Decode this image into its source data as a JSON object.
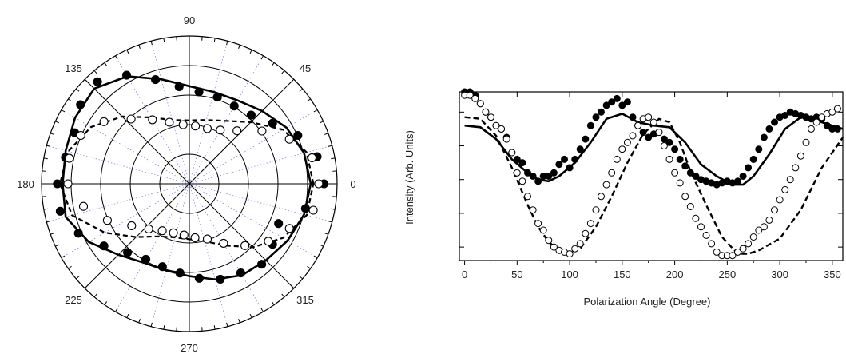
{
  "chart_data": [
    {
      "type": "polar-scatter",
      "angle_labels": [
        "90",
        "45",
        "0",
        "315",
        "270",
        "225",
        "180",
        "135"
      ],
      "angle_label_degrees": [
        90,
        45,
        0,
        315,
        270,
        225,
        180,
        135
      ],
      "rlim": [
        0,
        1.12
      ],
      "grid": true,
      "series": [
        {
          "marker": "filled-circle",
          "points": [
            [
              0,
              1.02
            ],
            [
              12,
              0.99
            ],
            [
              24,
              0.9
            ],
            [
              36,
              0.78
            ],
            [
              48,
              0.7
            ],
            [
              60,
              0.68
            ],
            [
              72,
              0.69
            ],
            [
              84,
              0.7
            ],
            [
              96,
              0.74
            ],
            [
              108,
              0.83
            ],
            [
              120,
              0.95
            ],
            [
              132,
              1.04
            ],
            [
              144,
              1.02
            ],
            [
              156,
              0.95
            ],
            [
              168,
              0.96
            ],
            [
              180,
              1.0
            ],
            [
              192,
              1.0
            ],
            [
              204,
              0.92
            ],
            [
              216,
              0.8
            ],
            [
              228,
              0.7
            ],
            [
              240,
              0.66
            ],
            [
              252,
              0.66
            ],
            [
              264,
              0.68
            ],
            [
              276,
              0.72
            ],
            [
              288,
              0.76
            ],
            [
              300,
              0.78
            ],
            [
              312,
              0.82
            ],
            [
              324,
              0.78
            ],
            [
              336,
              0.74
            ],
            [
              348,
              0.9
            ]
          ]
        },
        {
          "marker": "open-circle",
          "points": [
            [
              0,
              0.98
            ],
            [
              12,
              0.95
            ],
            [
              24,
              0.83
            ],
            [
              36,
              0.68
            ],
            [
              48,
              0.54
            ],
            [
              60,
              0.47
            ],
            [
              72,
              0.44
            ],
            [
              84,
              0.44
            ],
            [
              96,
              0.45
            ],
            [
              108,
              0.49
            ],
            [
              120,
              0.56
            ],
            [
              132,
              0.66
            ],
            [
              144,
              0.8
            ],
            [
              156,
              0.9
            ],
            [
              168,
              0.93
            ],
            [
              180,
              0.92
            ],
            [
              192,
              0.82
            ],
            [
              204,
              0.68
            ],
            [
              216,
              0.54
            ],
            [
              228,
              0.46
            ],
            [
              240,
              0.41
            ],
            [
              252,
              0.39
            ],
            [
              264,
              0.39
            ],
            [
              276,
              0.41
            ],
            [
              288,
              0.44
            ],
            [
              300,
              0.52
            ],
            [
              312,
              0.63
            ],
            [
              324,
              0.74
            ],
            [
              336,
              0.83
            ],
            [
              348,
              0.96
            ]
          ]
        },
        {
          "marker": "solid-line",
          "points": [
            [
              0,
              0.92
            ],
            [
              15,
              0.9
            ],
            [
              30,
              0.85
            ],
            [
              45,
              0.78
            ],
            [
              60,
              0.73
            ],
            [
              75,
              0.72
            ],
            [
              90,
              0.74
            ],
            [
              105,
              0.82
            ],
            [
              120,
              0.94
            ],
            [
              135,
              1.02
            ],
            [
              150,
              1.0
            ],
            [
              165,
              0.97
            ],
            [
              180,
              0.96
            ],
            [
              195,
              0.97
            ],
            [
              210,
              0.88
            ],
            [
              225,
              0.76
            ],
            [
              240,
              0.69
            ],
            [
              255,
              0.68
            ],
            [
              270,
              0.7
            ],
            [
              285,
              0.75
            ],
            [
              300,
              0.8
            ],
            [
              315,
              0.82
            ],
            [
              330,
              0.86
            ],
            [
              345,
              0.9
            ],
            [
              360,
              0.92
            ]
          ]
        },
        {
          "marker": "dashed-line",
          "points": [
            [
              0,
              0.94
            ],
            [
              15,
              0.92
            ],
            [
              30,
              0.82
            ],
            [
              45,
              0.66
            ],
            [
              60,
              0.55
            ],
            [
              75,
              0.5
            ],
            [
              90,
              0.48
            ],
            [
              105,
              0.5
            ],
            [
              120,
              0.58
            ],
            [
              135,
              0.72
            ],
            [
              150,
              0.86
            ],
            [
              165,
              0.95
            ],
            [
              180,
              0.98
            ],
            [
              195,
              0.92
            ],
            [
              210,
              0.74
            ],
            [
              225,
              0.57
            ],
            [
              240,
              0.46
            ],
            [
              255,
              0.42
            ],
            [
              270,
              0.42
            ],
            [
              285,
              0.45
            ],
            [
              300,
              0.54
            ],
            [
              315,
              0.68
            ],
            [
              330,
              0.82
            ],
            [
              345,
              0.92
            ],
            [
              360,
              0.94
            ]
          ]
        }
      ]
    },
    {
      "type": "scatter",
      "xlabel": "Polarization Angle (Degree)",
      "ylabel": "Intensity (Arb. Units)",
      "xlim": [
        -5,
        360
      ],
      "ylim": [
        0,
        1
      ],
      "xticks": [
        "0",
        "50",
        "100",
        "150",
        "200",
        "250",
        "300",
        "350"
      ],
      "xtick_values": [
        0,
        50,
        100,
        150,
        200,
        250,
        300,
        350
      ],
      "ytick_values": [
        0.08,
        0.28,
        0.48,
        0.68,
        0.88
      ],
      "series": [
        {
          "marker": "filled-circle",
          "x": [
            0,
            5,
            10,
            15,
            20,
            25,
            30,
            35,
            40,
            45,
            50,
            55,
            60,
            65,
            70,
            75,
            80,
            85,
            90,
            95,
            100,
            105,
            110,
            115,
            120,
            125,
            130,
            135,
            140,
            145,
            150,
            155,
            160,
            165,
            170,
            175,
            180,
            185,
            190,
            195,
            200,
            205,
            210,
            215,
            220,
            225,
            230,
            235,
            240,
            245,
            250,
            255,
            260,
            265,
            270,
            275,
            280,
            285,
            290,
            295,
            300,
            305,
            310,
            315,
            320,
            325,
            330,
            335,
            340,
            345,
            350,
            355
          ],
          "y": [
            1.0,
            1.0,
            0.98,
            0.93,
            0.88,
            0.85,
            0.8,
            0.78,
            0.73,
            0.64,
            0.6,
            0.58,
            0.52,
            0.5,
            0.47,
            0.5,
            0.5,
            0.52,
            0.57,
            0.6,
            0.55,
            0.6,
            0.66,
            0.72,
            0.8,
            0.85,
            0.88,
            0.92,
            0.94,
            0.96,
            0.92,
            0.94,
            0.85,
            0.8,
            0.76,
            0.73,
            0.75,
            0.76,
            0.72,
            0.7,
            0.66,
            0.6,
            0.56,
            0.52,
            0.5,
            0.48,
            0.47,
            0.46,
            0.45,
            0.46,
            0.47,
            0.46,
            0.47,
            0.5,
            0.55,
            0.6,
            0.66,
            0.73,
            0.78,
            0.82,
            0.85,
            0.86,
            0.88,
            0.87,
            0.86,
            0.85,
            0.84,
            0.85,
            0.84,
            0.8,
            0.78,
            0.78
          ]
        },
        {
          "marker": "open-circle",
          "x": [
            0,
            5,
            10,
            15,
            20,
            25,
            30,
            35,
            40,
            45,
            50,
            55,
            60,
            65,
            70,
            75,
            80,
            85,
            90,
            95,
            100,
            105,
            110,
            115,
            120,
            125,
            130,
            135,
            140,
            145,
            150,
            155,
            160,
            165,
            170,
            175,
            180,
            185,
            190,
            195,
            200,
            205,
            210,
            215,
            220,
            225,
            230,
            235,
            240,
            245,
            250,
            255,
            260,
            265,
            270,
            275,
            280,
            285,
            290,
            295,
            300,
            305,
            310,
            315,
            320,
            325,
            330,
            335,
            340,
            345,
            350,
            355
          ],
          "y": [
            0.98,
            0.98,
            0.96,
            0.93,
            0.88,
            0.85,
            0.8,
            0.78,
            0.72,
            0.64,
            0.52,
            0.47,
            0.38,
            0.3,
            0.22,
            0.18,
            0.12,
            0.08,
            0.06,
            0.05,
            0.04,
            0.07,
            0.1,
            0.16,
            0.22,
            0.3,
            0.38,
            0.45,
            0.52,
            0.6,
            0.66,
            0.7,
            0.74,
            0.8,
            0.84,
            0.85,
            0.82,
            0.76,
            0.68,
            0.6,
            0.52,
            0.46,
            0.38,
            0.32,
            0.25,
            0.2,
            0.15,
            0.1,
            0.05,
            0.03,
            0.03,
            0.03,
            0.05,
            0.07,
            0.1,
            0.14,
            0.18,
            0.2,
            0.24,
            0.3,
            0.36,
            0.42,
            0.48,
            0.55,
            0.62,
            0.7,
            0.78,
            0.82,
            0.85,
            0.87,
            0.88,
            0.9
          ]
        },
        {
          "marker": "solid-line",
          "x": [
            0,
            15,
            30,
            45,
            60,
            70,
            80,
            90,
            105,
            120,
            135,
            150,
            165,
            180,
            195,
            210,
            225,
            240,
            255,
            265,
            275,
            290,
            305,
            320,
            335,
            350,
            360
          ],
          "y": [
            0.8,
            0.79,
            0.72,
            0.6,
            0.52,
            0.48,
            0.47,
            0.5,
            0.58,
            0.7,
            0.84,
            0.87,
            0.82,
            0.8,
            0.79,
            0.7,
            0.57,
            0.5,
            0.45,
            0.45,
            0.5,
            0.63,
            0.78,
            0.85,
            0.83,
            0.8,
            0.78
          ]
        },
        {
          "marker": "dashed-line",
          "x": [
            0,
            15,
            30,
            45,
            60,
            70,
            80,
            90,
            100,
            110,
            125,
            140,
            155,
            170,
            185,
            195,
            205,
            215,
            230,
            245,
            260,
            270,
            280,
            300,
            320,
            340,
            360
          ],
          "y": [
            0.85,
            0.84,
            0.74,
            0.55,
            0.33,
            0.2,
            0.11,
            0.06,
            0.05,
            0.07,
            0.2,
            0.38,
            0.58,
            0.75,
            0.84,
            0.82,
            0.7,
            0.53,
            0.33,
            0.14,
            0.04,
            0.04,
            0.06,
            0.13,
            0.3,
            0.55,
            0.73
          ]
        }
      ]
    }
  ]
}
